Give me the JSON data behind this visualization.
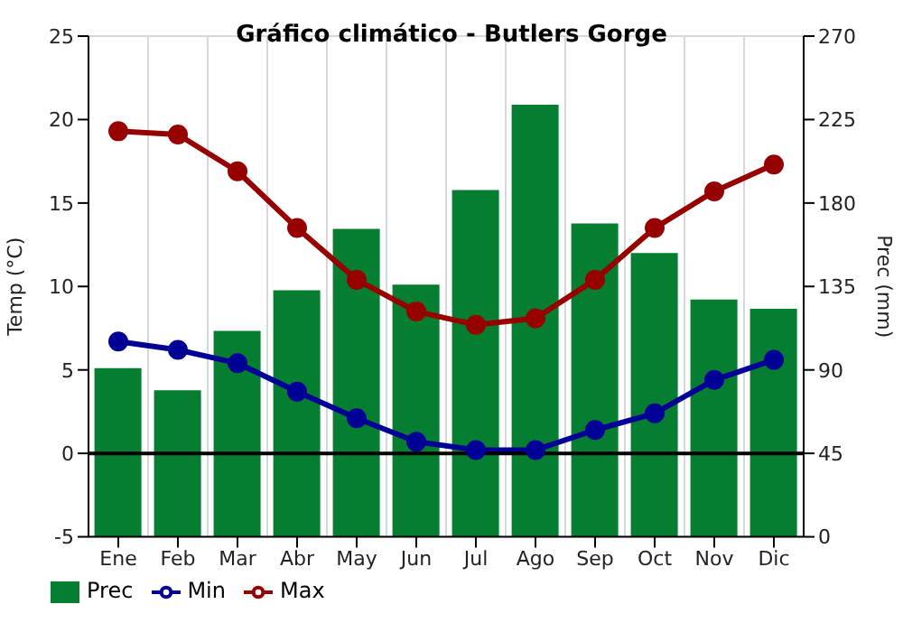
{
  "chart_data": {
    "type": "bar",
    "title": "Gráfico climático - Butlers Gorge",
    "ylabel": "Temp (°C)",
    "y2label": "Prec (mm)",
    "categories": [
      "Ene",
      "Feb",
      "Mar",
      "Abr",
      "May",
      "Jun",
      "Jul",
      "Ago",
      "Sep",
      "Oct",
      "Nov",
      "Dic"
    ],
    "series": [
      {
        "name": "Prec",
        "axis": "y2",
        "color": "#057e31",
        "values": [
          91,
          79,
          111,
          133,
          166,
          136,
          187,
          233,
          169,
          153,
          128,
          123
        ]
      },
      {
        "name": "Min",
        "type": "line",
        "color": "#000096",
        "values": [
          6.7,
          6.2,
          5.4,
          3.7,
          2.1,
          0.7,
          0.2,
          0.2,
          1.4,
          2.4,
          4.4,
          5.6
        ]
      },
      {
        "name": "Max",
        "type": "line",
        "color": "#960000",
        "values": [
          19.3,
          19.1,
          16.9,
          13.5,
          10.4,
          8.5,
          7.7,
          8.1,
          10.4,
          13.5,
          15.7,
          17.3
        ]
      }
    ],
    "ylim": [
      -5,
      25
    ],
    "yticks": [
      -5,
      0,
      5,
      10,
      15,
      20,
      25
    ],
    "y2lim": [
      0,
      270
    ],
    "y2ticks": [
      0,
      45,
      90,
      135,
      180,
      225,
      270
    ],
    "ref_lines": [
      {
        "axis": "y",
        "value": 0,
        "color": "#000000"
      }
    ],
    "grid": true,
    "legend": "bottom",
    "marker": "circle"
  }
}
